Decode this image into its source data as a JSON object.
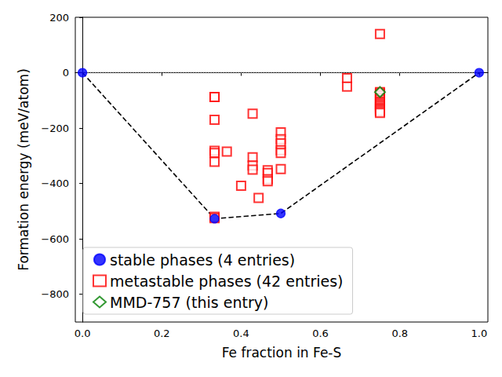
{
  "chart_data": {
    "type": "scatter",
    "xlabel": "Fe fraction in Fe-S",
    "ylabel": "Formation energy (meV/atom)",
    "xlim": [
      -0.018,
      1.022
    ],
    "ylim": [
      -900,
      200
    ],
    "xticks": [
      {
        "value": 0,
        "label": "0.0"
      },
      {
        "value": 0.2,
        "label": "0.2"
      },
      {
        "value": 0.4,
        "label": "0.4"
      },
      {
        "value": 0.6,
        "label": "0.6"
      },
      {
        "value": 0.8,
        "label": "0.8"
      },
      {
        "value": 1,
        "label": "1.0"
      }
    ],
    "yticks": [
      {
        "value": -800,
        "label": "−800"
      },
      {
        "value": -600,
        "label": "−600"
      },
      {
        "value": -400,
        "label": "−400"
      },
      {
        "value": -200,
        "label": "−200"
      },
      0,
      200
    ],
    "legend": "lower left",
    "series": [
      {
        "type": "line",
        "color": "#808080",
        "line_style": "dotted",
        "marker": "none",
        "x": [
          0,
          1
        ],
        "values": [
          0,
          0
        ]
      },
      {
        "type": "line",
        "color": "#000000",
        "line_style": "dashed",
        "marker": "none",
        "x": [
          0,
          0.333,
          0.5,
          1
        ],
        "values": [
          0,
          -527,
          -508,
          0
        ]
      },
      {
        "name": "metastable phases (42 entries)",
        "type": "scatter",
        "color": "#ff0000",
        "marker": "square_open",
        "x": [
          0.333,
          0.333,
          0.333,
          0.333,
          0.333,
          0.333,
          0.333,
          0.333,
          0.364,
          0.4,
          0.429,
          0.429,
          0.429,
          0.429,
          0.444,
          0.467,
          0.467,
          0.467,
          0.467,
          0.5,
          0.5,
          0.5,
          0.5,
          0.5,
          0.5,
          0.667,
          0.667,
          0.75,
          0.75,
          0.75,
          0.75,
          0.75,
          0.75,
          0.75,
          0.75,
          0.75,
          0.75,
          0.75,
          0.75,
          0.75,
          0.75,
          0.75
        ],
        "values": [
          -88,
          -88,
          -170,
          -282,
          -290,
          -322,
          -520,
          -525,
          -285,
          -408,
          -148,
          -305,
          -335,
          -350,
          -452,
          -352,
          -362,
          -385,
          -392,
          -215,
          -240,
          -255,
          -280,
          -290,
          -348,
          -20,
          -50,
          140,
          -70,
          -75,
          -82,
          -90,
          -98,
          -105,
          -110,
          -115,
          -120,
          -125,
          -130,
          -135,
          -140,
          -145
        ]
      },
      {
        "name": "stable phases (4 entries)",
        "type": "scatter",
        "color": "#0000ff",
        "marker": "circle",
        "x": [
          0,
          0.333,
          0.5,
          1
        ],
        "values": [
          0,
          -527,
          -508,
          0
        ]
      },
      {
        "name": "MMD-757 (this entry)",
        "type": "scatter",
        "color": "#008000",
        "marker": "diamond_open",
        "x": [
          0.75
        ],
        "values": [
          -70
        ]
      }
    ]
  }
}
